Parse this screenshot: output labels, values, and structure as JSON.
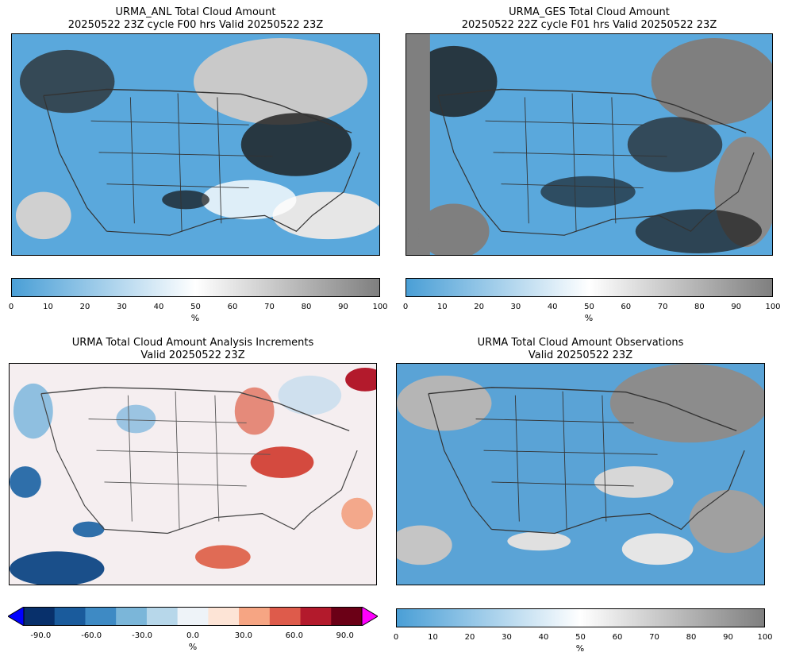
{
  "panels": {
    "anl": {
      "title_line1": "URMA_ANL Total Cloud Amount",
      "title_line2": "20250522 23Z cycle F00 hrs Valid 20250522 23Z"
    },
    "ges": {
      "title_line1": "URMA_GES Total Cloud Amount",
      "title_line2": "20250522 22Z cycle F01 hrs Valid 20250522 23Z"
    },
    "inc": {
      "title_line1": "URMA Total Cloud Amount Analysis Increments",
      "title_line2": "Valid 20250522 23Z"
    },
    "obs": {
      "title_line1": "URMA Total Cloud Amount Observations",
      "title_line2": "Valid 20250522 23Z"
    }
  },
  "colorbars": {
    "cloud": {
      "ticks": [
        "0",
        "10",
        "20",
        "30",
        "40",
        "50",
        "60",
        "70",
        "80",
        "90",
        "100"
      ],
      "unit": "%",
      "range": [
        0,
        100
      ],
      "colors": [
        "#4a9fd6",
        "#ffffff",
        "#7f7f7f"
      ]
    },
    "increment": {
      "ticks": [
        "-90.0",
        "-60.0",
        "-30.0",
        "0.0",
        "30.0",
        "60.0",
        "90.0"
      ],
      "unit": "%",
      "range": [
        -100,
        100
      ],
      "under_color": "#0000ff",
      "over_color": "#ff00ff",
      "colors": [
        "#08306b",
        "#1a5b9c",
        "#3e8ac4",
        "#7bb6d9",
        "#b7d7ea",
        "#eef3f8",
        "#fde4d6",
        "#f6a583",
        "#de5b4b",
        "#b31a2c",
        "#6b0016"
      ]
    }
  }
}
